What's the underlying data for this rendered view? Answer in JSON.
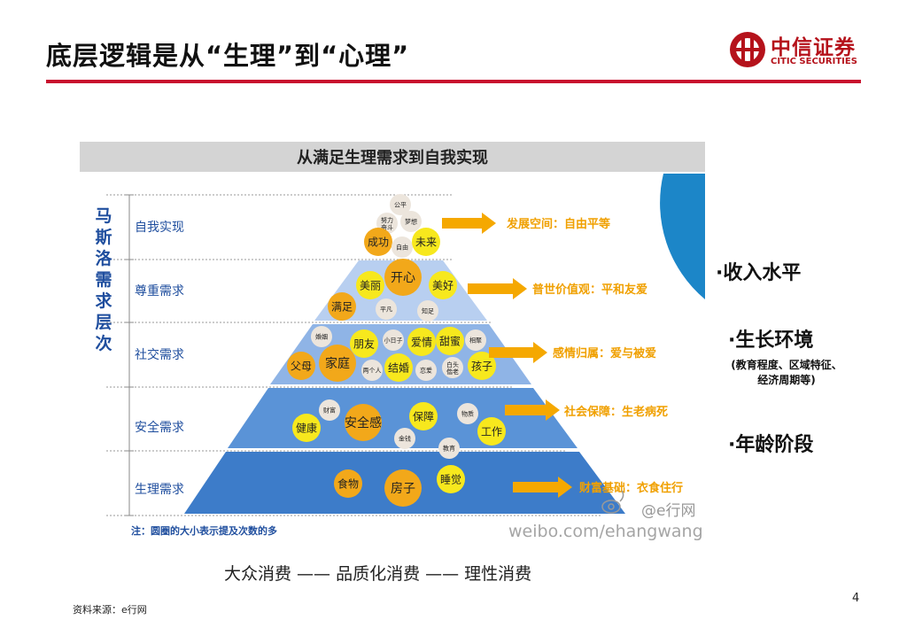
{
  "header": {
    "title": "底层逻辑是从“生理”到“心理”",
    "logo_cn": "中信证券",
    "logo_en": "CITIC SECURITIES"
  },
  "diagram": {
    "banner": "从满足生理需求到自我实现",
    "vertical_label": [
      "马",
      "斯",
      "洛",
      "需",
      "求",
      "层",
      "次"
    ],
    "levels": [
      {
        "name": "自我实现",
        "outcome": "发展空间：自由平等",
        "bubbles": [
          {
            "t": "公平",
            "s": "s"
          },
          {
            "t": "努力奋斗",
            "s": "s"
          },
          {
            "t": "梦想",
            "s": "s"
          },
          {
            "t": "成功",
            "s": "m"
          },
          {
            "t": "自由",
            "s": "s"
          },
          {
            "t": "未来",
            "s": "m"
          }
        ]
      },
      {
        "name": "尊重需求",
        "outcome": "普世价值观：平和友爱",
        "bubbles": [
          {
            "t": "美丽",
            "s": "m"
          },
          {
            "t": "开心",
            "s": "l"
          },
          {
            "t": "美好",
            "s": "m"
          },
          {
            "t": "满足",
            "s": "m"
          },
          {
            "t": "平凡",
            "s": "s"
          },
          {
            "t": "知足",
            "s": "s"
          }
        ]
      },
      {
        "name": "社交需求",
        "outcome": "感情归属：爱与被爱",
        "bubbles": [
          {
            "t": "婚姻",
            "s": "s"
          },
          {
            "t": "朋友",
            "s": "m"
          },
          {
            "t": "小日子",
            "s": "s"
          },
          {
            "t": "爱情",
            "s": "m"
          },
          {
            "t": "甜蜜",
            "s": "m"
          },
          {
            "t": "相聚",
            "s": "s"
          },
          {
            "t": "父母",
            "s": "m"
          },
          {
            "t": "家庭",
            "s": "l"
          },
          {
            "t": "两个人",
            "s": "s"
          },
          {
            "t": "结婚",
            "s": "m"
          },
          {
            "t": "恋爱",
            "s": "s"
          },
          {
            "t": "白头偕老",
            "s": "s"
          },
          {
            "t": "孩子",
            "s": "m"
          }
        ]
      },
      {
        "name": "安全需求",
        "outcome": "社会保障：生老病死",
        "bubbles": [
          {
            "t": "财富",
            "s": "s"
          },
          {
            "t": "健康",
            "s": "m"
          },
          {
            "t": "安全感",
            "s": "l"
          },
          {
            "t": "保障",
            "s": "m"
          },
          {
            "t": "物质",
            "s": "s"
          },
          {
            "t": "金钱",
            "s": "s"
          },
          {
            "t": "工作",
            "s": "m"
          },
          {
            "t": "教育",
            "s": "s"
          }
        ]
      },
      {
        "name": "生理需求",
        "outcome": "财富基础：衣食住行",
        "bubbles": [
          {
            "t": "食物",
            "s": "m"
          },
          {
            "t": "房子",
            "s": "l"
          },
          {
            "t": "睡觉",
            "s": "m"
          }
        ]
      }
    ],
    "note": "注：圆圈的大小表示提及次数的多",
    "watermark_handle": "@e行网",
    "watermark_url": "weibo.com/ehangwang"
  },
  "side_factors": {
    "f1": "·收入水平",
    "f2": "·生长环境",
    "f2_note1": "(教育程度、区域特征、",
    "f2_note2": "经济周期等)",
    "f3": "·年龄阶段"
  },
  "footer": {
    "consumption_path": "大众消费 —— 品质化消费 —— 理性消费",
    "source": "资料来源：e行网",
    "page": "4"
  },
  "colors": {
    "accent_red": "#c8102e",
    "pyramid_blue": "#3d7cc9",
    "pyramid_light": "#b8cff0",
    "arrow_orange": "#f5a800",
    "outcome_text": "#f0a000",
    "bubble_yellow": "#f7e81d",
    "bubble_orange": "#f2a81a",
    "bubble_gray": "#ece5dc"
  }
}
